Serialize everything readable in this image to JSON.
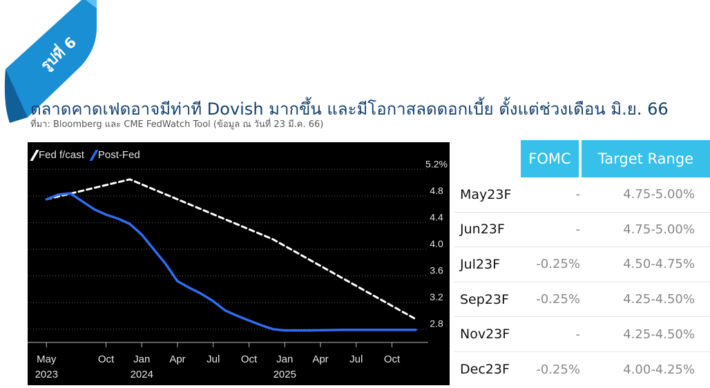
{
  "badge": {
    "label": "รูปที่ 6",
    "color": "#1b8fd4"
  },
  "title": "ตลาดคาดเฟดอาจมีท่าที Dovish มากขึ้น และมีโอกาสลดดอกเบี้ย ตั้งแต่ช่วงเดือน มิ.ย. 66",
  "source": "ที่มา: Bloomberg และ CME FedWatch Tool (ข้อมูล ณ วันที่ 23 มี.ค. 66)",
  "colors": {
    "title": "#17406d",
    "table_header": "#36c0ea",
    "post_fed": "#2f6df0",
    "fed_forecast": "#ffffff"
  },
  "chart_data": {
    "type": "line",
    "x_unit": "month",
    "xlim": [
      "2023-04",
      "2025-12"
    ],
    "ylim": [
      2.6,
      5.4
    ],
    "yticks": [
      "2.8",
      "3.2",
      "3.6",
      "4.0",
      "4.4",
      "4.8",
      "5.2%"
    ],
    "ytick_values": [
      2.8,
      3.2,
      3.6,
      4.0,
      4.4,
      4.8,
      5.2
    ],
    "xticks": [
      {
        "x": "2023-05",
        "label": "May",
        "year": "2023"
      },
      {
        "x": "2023-10",
        "label": "Oct",
        "year": ""
      },
      {
        "x": "2024-01",
        "label": "Jan",
        "year": "2024"
      },
      {
        "x": "2024-04",
        "label": "Apr",
        "year": ""
      },
      {
        "x": "2024-07",
        "label": "Jul",
        "year": ""
      },
      {
        "x": "2024-10",
        "label": "Oct",
        "year": ""
      },
      {
        "x": "2025-01",
        "label": "Jan",
        "year": "2025"
      },
      {
        "x": "2025-04",
        "label": "Apr",
        "year": ""
      },
      {
        "x": "2025-07",
        "label": "Jul",
        "year": ""
      },
      {
        "x": "2025-10",
        "label": "Oct",
        "year": ""
      }
    ],
    "grid": true,
    "legend": "top-left",
    "series": [
      {
        "name": "Fed f/cast",
        "style": "dashed",
        "color": "#ffffff",
        "points": [
          [
            "2023-05",
            4.75
          ],
          [
            "2023-12",
            5.05
          ],
          [
            "2024-12",
            4.15
          ],
          [
            "2025-12",
            2.95
          ]
        ]
      },
      {
        "name": "Post-Fed",
        "style": "solid",
        "color": "#2f6df0",
        "points": [
          [
            "2023-05",
            4.75
          ],
          [
            "2023-06",
            4.82
          ],
          [
            "2023-07",
            4.84
          ],
          [
            "2023-08",
            4.72
          ],
          [
            "2023-09",
            4.6
          ],
          [
            "2023-10",
            4.52
          ],
          [
            "2023-11",
            4.46
          ],
          [
            "2023-12",
            4.38
          ],
          [
            "2024-01",
            4.22
          ],
          [
            "2024-02",
            4.0
          ],
          [
            "2024-03",
            3.78
          ],
          [
            "2024-04",
            3.52
          ],
          [
            "2024-05",
            3.42
          ],
          [
            "2024-06",
            3.33
          ],
          [
            "2024-07",
            3.22
          ],
          [
            "2024-08",
            3.08
          ],
          [
            "2024-09",
            3.0
          ],
          [
            "2024-10",
            2.93
          ],
          [
            "2024-11",
            2.86
          ],
          [
            "2024-12",
            2.8
          ],
          [
            "2025-01",
            2.78
          ],
          [
            "2025-03",
            2.78
          ],
          [
            "2025-06",
            2.79
          ],
          [
            "2025-09",
            2.79
          ],
          [
            "2025-12",
            2.79
          ]
        ]
      }
    ]
  },
  "table": {
    "headers": {
      "fomc": "FOMC",
      "target": "Target Range"
    },
    "rows": [
      {
        "month": "May23F",
        "fomc": "-",
        "target": "4.75-5.00%"
      },
      {
        "month": "Jun23F",
        "fomc": "-",
        "target": "4.75-5.00%"
      },
      {
        "month": "Jul23F",
        "fomc": "-0.25%",
        "target": "4.50-4.75%"
      },
      {
        "month": "Sep23F",
        "fomc": "-0.25%",
        "target": "4.25-4.50%"
      },
      {
        "month": "Nov23F",
        "fomc": "-",
        "target": "4.25-4.50%"
      },
      {
        "month": "Dec23F",
        "fomc": "-0.25%",
        "target": "4.00-4.25%"
      }
    ]
  }
}
